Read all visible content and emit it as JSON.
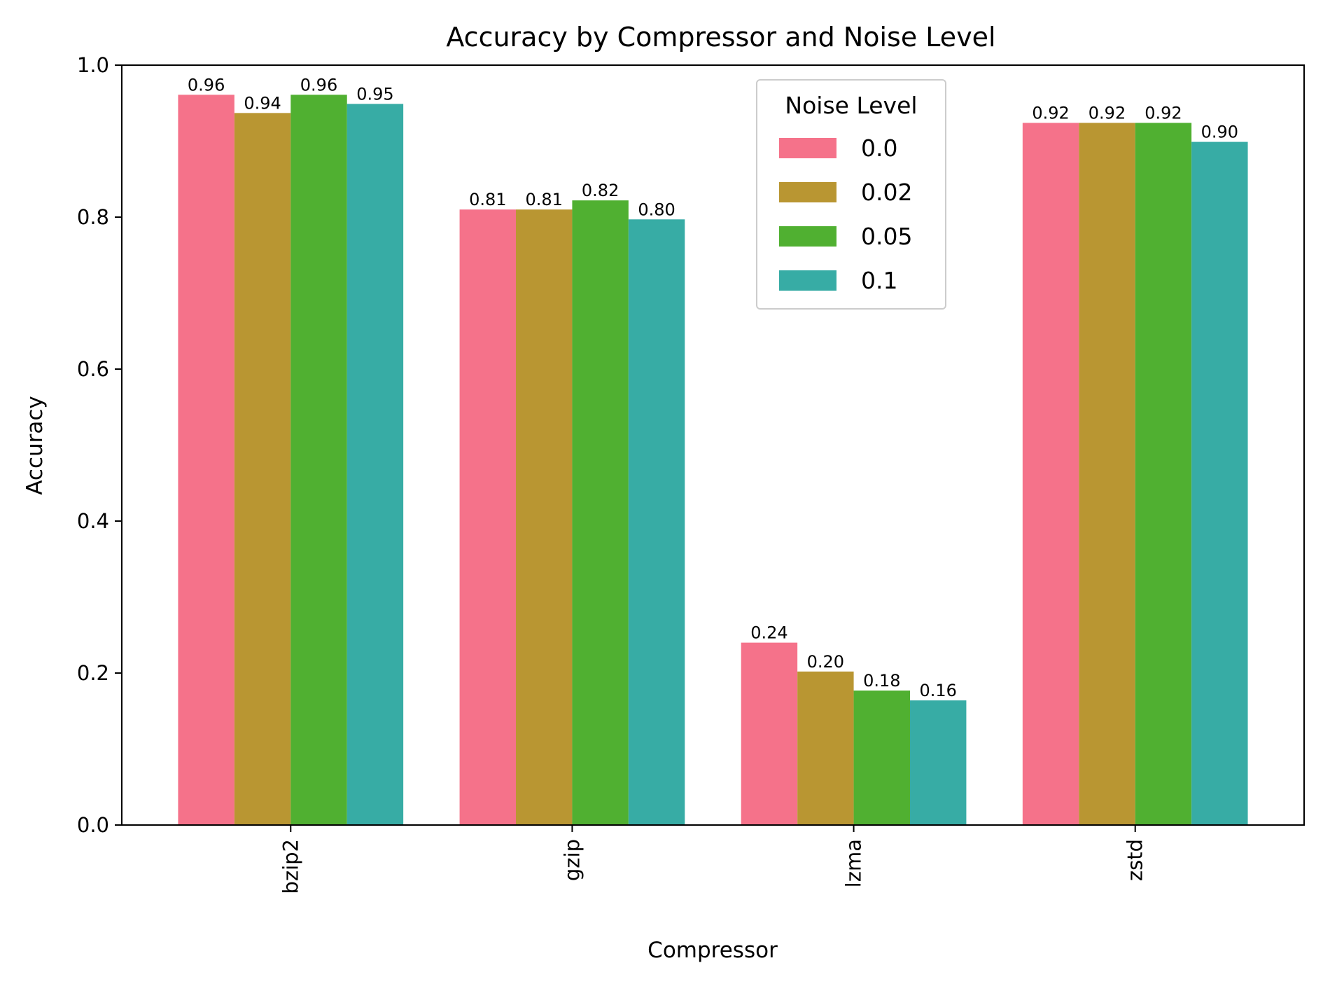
{
  "chart_data": {
    "type": "bar",
    "title": "Accuracy by Compressor and Noise Level",
    "xlabel": "Compressor",
    "ylabel": "Accuracy",
    "categories": [
      "bzip2",
      "gzip",
      "lzma",
      "zstd"
    ],
    "ylim": [
      0.0,
      1.0
    ],
    "yticks": [
      "0.0",
      "0.2",
      "0.4",
      "0.6",
      "0.8",
      "1.0"
    ],
    "grid": false,
    "legend": {
      "title": "Noise Level",
      "placement": "upper center"
    },
    "series": [
      {
        "name": "0.0",
        "color": "#f5728a",
        "values": [
          0.961,
          0.81,
          0.24,
          0.924
        ],
        "labels": [
          "0.96",
          "0.81",
          "0.24",
          "0.92"
        ]
      },
      {
        "name": "0.02",
        "color": "#b99632",
        "values": [
          0.937,
          0.81,
          0.202,
          0.924
        ],
        "labels": [
          "0.94",
          "0.81",
          "0.20",
          "0.92"
        ]
      },
      {
        "name": "0.05",
        "color": "#50b031",
        "values": [
          0.961,
          0.822,
          0.177,
          0.924
        ],
        "labels": [
          "0.96",
          "0.82",
          "0.18",
          "0.92"
        ]
      },
      {
        "name": "0.1",
        "color": "#37aca5",
        "values": [
          0.949,
          0.797,
          0.164,
          0.899
        ],
        "labels": [
          "0.95",
          "0.80",
          "0.16",
          "0.90"
        ]
      }
    ]
  }
}
